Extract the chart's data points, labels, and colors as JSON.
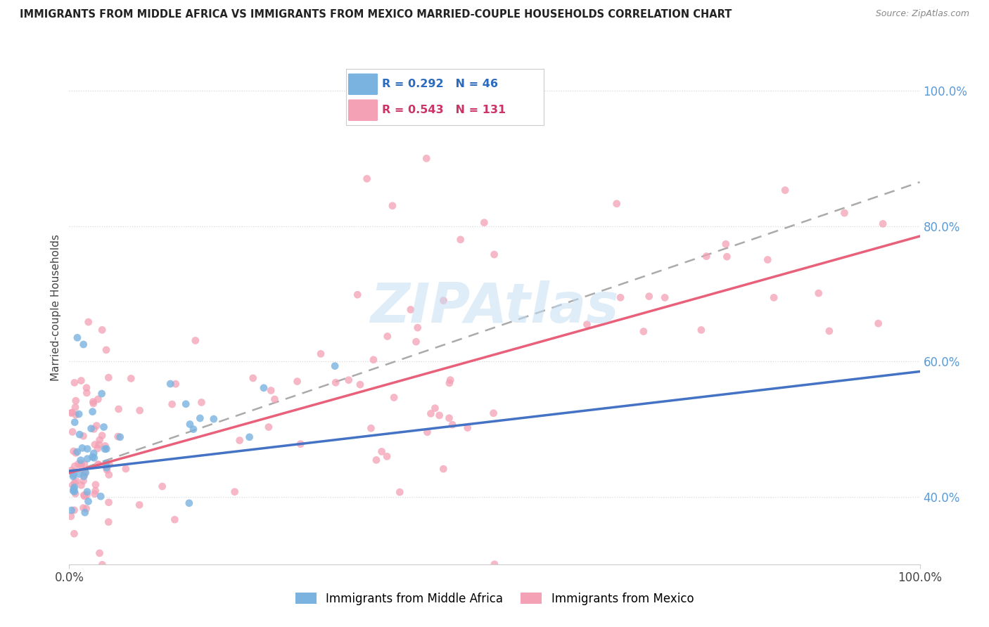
{
  "title": "IMMIGRANTS FROM MIDDLE AFRICA VS IMMIGRANTS FROM MEXICO MARRIED-COUPLE HOUSEHOLDS CORRELATION CHART",
  "source": "Source: ZipAtlas.com",
  "ylabel": "Married-couple Households",
  "watermark": "ZIPAtlas",
  "legend_blue_R": "R = 0.292",
  "legend_blue_N": "N = 46",
  "legend_pink_R": "R = 0.543",
  "legend_pink_N": "N = 131",
  "blue_color": "#7ab3e0",
  "pink_color": "#f4a0b5",
  "line_blue": "#4472c4",
  "line_pink": "#e8607a",
  "line_gray_dash": "#aaaaaa",
  "background_color": "#ffffff",
  "grid_color": "#d8d8d8",
  "right_tick_color": "#5b9bd5",
  "xlim": [
    0.0,
    1.0
  ],
  "ylim": [
    0.3,
    1.06
  ],
  "yticks": [
    0.4,
    0.6,
    0.8,
    1.0
  ],
  "ytick_labels": [
    "40.0%",
    "60.0%",
    "80.0%",
    "100.0%"
  ],
  "xticks": [
    0.0,
    1.0
  ],
  "xtick_labels": [
    "0.0%",
    "100.0%"
  ],
  "blue_line_x0": 0.0,
  "blue_line_y0": 0.438,
  "blue_line_x1": 1.0,
  "blue_line_y1": 0.585,
  "pink_line_x0": 0.0,
  "pink_line_y0": 0.435,
  "pink_line_x1": 1.0,
  "pink_line_y1": 0.785,
  "gray_line_x0": 0.0,
  "gray_line_y0": 0.435,
  "gray_line_x1": 1.0,
  "gray_line_y1": 0.865
}
